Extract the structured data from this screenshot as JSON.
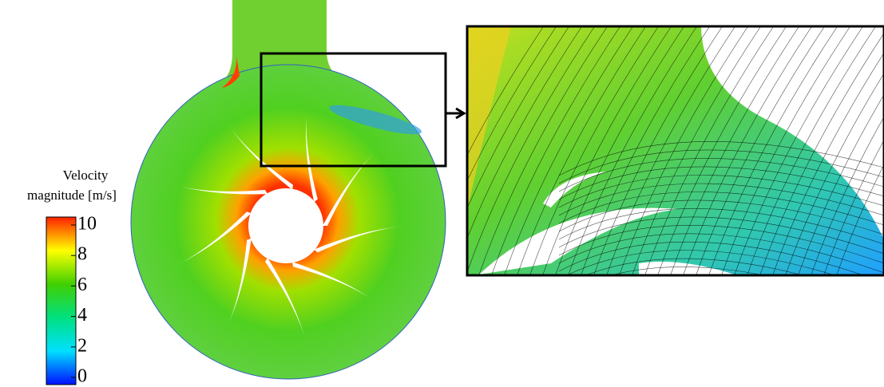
{
  "colorbar": {
    "title": [
      "Velocity",
      "magnitude [m/s]"
    ],
    "ticks": [
      0,
      2,
      4,
      6,
      8,
      10
    ]
  }
}
